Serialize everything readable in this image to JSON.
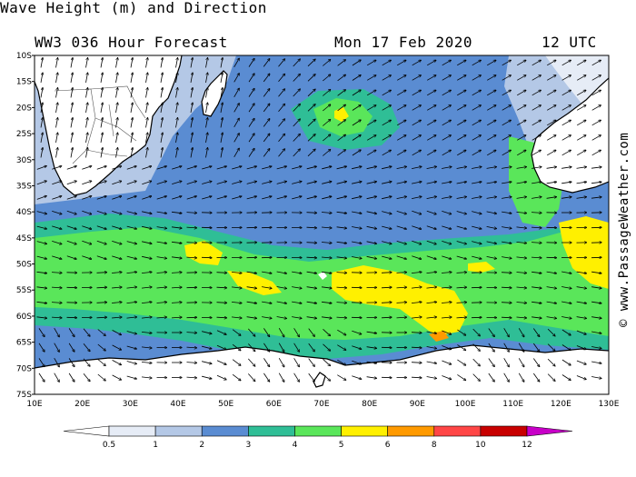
{
  "header": {
    "title_line1": "Wave Height (m) and Direction",
    "title_line2": "WW3 036 Hour Forecast",
    "date": "Mon 17 Feb 2020",
    "time": "12 UTC"
  },
  "credit": "© www.PassageWeather.com",
  "map": {
    "lat_labels": [
      "10S",
      "15S",
      "20S",
      "25S",
      "30S",
      "35S",
      "40S",
      "45S",
      "50S",
      "55S",
      "60S",
      "65S",
      "70S",
      "75S"
    ],
    "lon_labels": [
      "10E",
      "20E",
      "30E",
      "40E",
      "50E",
      "60E",
      "70E",
      "80E",
      "90E",
      "100E",
      "110E",
      "120E",
      "130E"
    ],
    "land_color": "#ffffff",
    "coast_color": "#000000",
    "arrow_color": "#000000"
  },
  "legend": {
    "tick_labels": [
      "0.5",
      "1",
      "2",
      "3",
      "4",
      "5",
      "6",
      "8",
      "10",
      "12"
    ],
    "colors": [
      "#e6ecf6",
      "#b4c8e6",
      "#5a8cd2",
      "#2fbe96",
      "#5ae65a",
      "#fff000",
      "#ff9a00",
      "#ff4646",
      "#c80000",
      "#c800c8"
    ],
    "end_low_color": "#ffffff",
    "end_high_color": "#c800c8"
  },
  "wave_colors": {
    "lt1": "#e6ecf6",
    "r1_2": "#b4c8e6",
    "r2_3": "#5a8cd2",
    "r3_4": "#2fbe96",
    "r4_5": "#5ae65a",
    "r5_6": "#fff000",
    "r6_8": "#ff9a00"
  }
}
